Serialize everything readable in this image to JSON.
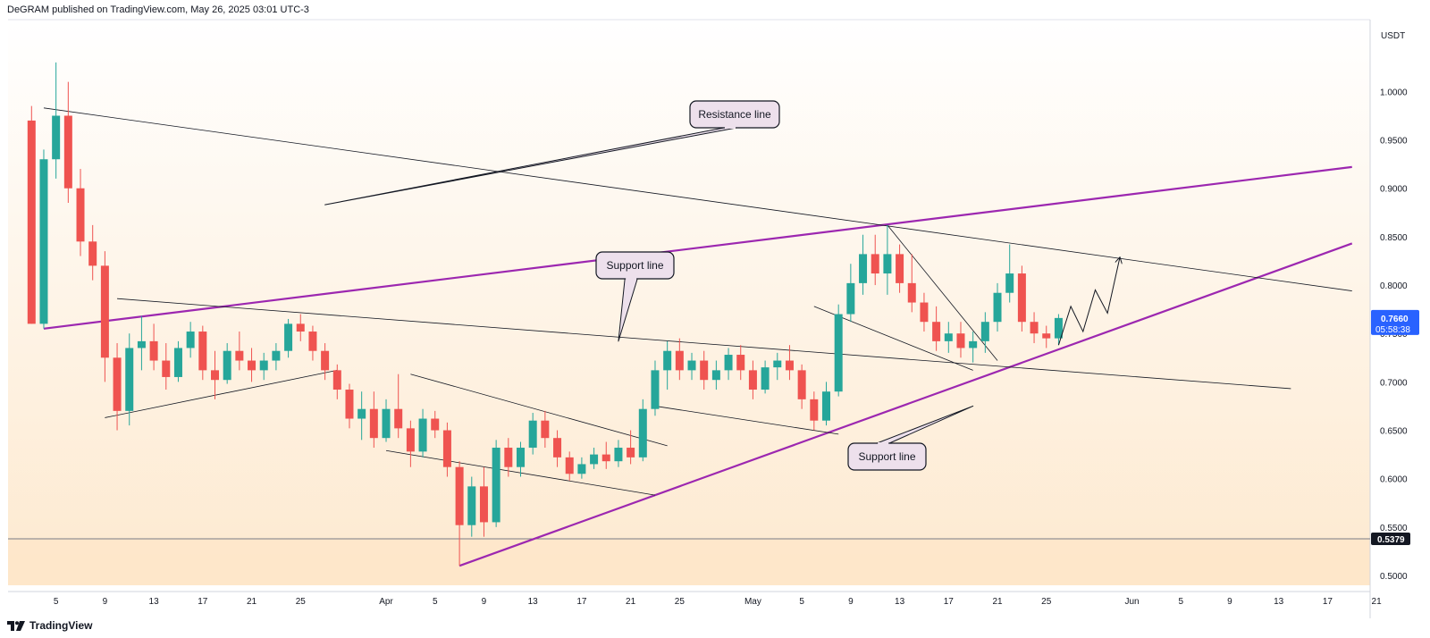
{
  "header": {
    "published": "DeGRAM published on TradingView.com, May 26, 2025 03:01 UTC-3"
  },
  "footer": {
    "brand": "TradingView"
  },
  "colors": {
    "bull": "#26a69a",
    "bear": "#ef5350",
    "pattern": "#9c27b0",
    "trend": "#131722",
    "tag_blue": "#2962ff",
    "tag_black": "#131722"
  },
  "chart_data": {
    "type": "candlestick",
    "currency": "USDT",
    "y_ticks": [
      "1.0000",
      "0.9500",
      "0.9000",
      "0.8500",
      "0.8000",
      "0.7500",
      "0.7000",
      "0.6500",
      "0.6000",
      "0.5500",
      "0.5000"
    ],
    "ylim": [
      0.464,
      1.065
    ],
    "x_ticks": [
      "5",
      "9",
      "13",
      "17",
      "21",
      "25",
      "Apr",
      "5",
      "9",
      "13",
      "17",
      "21",
      "25",
      "May",
      "5",
      "9",
      "13",
      "17",
      "21",
      "25",
      "Jun",
      "5",
      "9",
      "13",
      "17",
      "21"
    ],
    "price_tag": {
      "value": "0.7660",
      "countdown": "05:58:38"
    },
    "level_tag": {
      "value": "0.5379"
    },
    "horizontal_level": 0.5379,
    "callouts": [
      {
        "label": "Resistance line",
        "at": [
          "Mar 27",
          0.883
        ]
      },
      {
        "label": "Support line",
        "at": [
          "Apr 20",
          0.742
        ]
      },
      {
        "label": "Support line",
        "at": [
          "May 19",
          0.675
        ]
      }
    ],
    "lines": [
      {
        "name": "Rising trend (upper)",
        "style": "pattern",
        "from": [
          "Mar 4",
          0.755
        ],
        "to": [
          "Jun 19",
          0.922
        ]
      },
      {
        "name": "Rising trend (lower)",
        "style": "pattern",
        "from": [
          "Apr 7",
          0.51
        ],
        "to": [
          "Jun 19",
          0.843
        ]
      },
      {
        "name": "Descending line",
        "style": "thin",
        "from": [
          "Mar 4",
          0.983
        ],
        "to": [
          "Jun 19",
          0.794
        ]
      },
      {
        "name": "Long horizontal-ish line",
        "style": "thin",
        "from": [
          "Mar 10",
          0.786
        ],
        "to": [
          "Jun 14",
          0.693
        ]
      },
      {
        "name": "Wedge top",
        "style": "thin",
        "from": [
          "Apr 3",
          0.708
        ],
        "to": [
          "Apr 24",
          0.634
        ]
      },
      {
        "name": "Wedge bottom",
        "style": "thin",
        "from": [
          "Apr 1",
          0.629
        ],
        "to": [
          "Apr 23",
          0.583
        ]
      },
      {
        "name": "Flag top",
        "style": "thin",
        "from": [
          "May 12",
          0.862
        ],
        "to": [
          "May 21",
          0.722
        ]
      },
      {
        "name": "Flag bottom",
        "style": "thin",
        "from": [
          "May 6",
          0.778
        ],
        "to": [
          "May 19",
          0.712
        ]
      },
      {
        "name": "Channel lower",
        "style": "thin",
        "from": [
          "Apr 23",
          0.675
        ],
        "to": [
          "May 8",
          0.646
        ]
      },
      {
        "name": "Early channel",
        "style": "thin",
        "from": [
          "Mar 9",
          0.663
        ],
        "to": [
          "Mar 28",
          0.712
        ]
      }
    ],
    "projection": [
      [
        "May 26",
        0.738
      ],
      [
        "May 27",
        0.778
      ],
      [
        "May 28",
        0.752
      ],
      [
        "May 29",
        0.795
      ],
      [
        "May 30",
        0.771
      ],
      [
        "May 31",
        0.828
      ]
    ],
    "candles": [
      {
        "t": "Mar 3",
        "o": 0.97,
        "h": 0.985,
        "l": 0.76,
        "c": 0.76
      },
      {
        "t": "Mar 4",
        "o": 0.76,
        "h": 0.94,
        "l": 0.755,
        "c": 0.93
      },
      {
        "t": "Mar 5",
        "o": 0.93,
        "h": 1.03,
        "l": 0.91,
        "c": 0.975
      },
      {
        "t": "Mar 6",
        "o": 0.975,
        "h": 1.01,
        "l": 0.885,
        "c": 0.9
      },
      {
        "t": "Mar 7",
        "o": 0.9,
        "h": 0.92,
        "l": 0.83,
        "c": 0.845
      },
      {
        "t": "Mar 8",
        "o": 0.845,
        "h": 0.862,
        "l": 0.805,
        "c": 0.82
      },
      {
        "t": "Mar 9",
        "o": 0.82,
        "h": 0.835,
        "l": 0.7,
        "c": 0.725
      },
      {
        "t": "Mar 10",
        "o": 0.725,
        "h": 0.74,
        "l": 0.65,
        "c": 0.67
      },
      {
        "t": "Mar 11",
        "o": 0.67,
        "h": 0.75,
        "l": 0.655,
        "c": 0.735
      },
      {
        "t": "Mar 12",
        "o": 0.735,
        "h": 0.768,
        "l": 0.712,
        "c": 0.742
      },
      {
        "t": "Mar 13",
        "o": 0.742,
        "h": 0.76,
        "l": 0.712,
        "c": 0.722
      },
      {
        "t": "Mar 14",
        "o": 0.722,
        "h": 0.74,
        "l": 0.692,
        "c": 0.705
      },
      {
        "t": "Mar 15",
        "o": 0.705,
        "h": 0.742,
        "l": 0.7,
        "c": 0.735
      },
      {
        "t": "Mar 16",
        "o": 0.735,
        "h": 0.762,
        "l": 0.725,
        "c": 0.752
      },
      {
        "t": "Mar 17",
        "o": 0.752,
        "h": 0.758,
        "l": 0.702,
        "c": 0.712
      },
      {
        "t": "Mar 18",
        "o": 0.712,
        "h": 0.732,
        "l": 0.682,
        "c": 0.702
      },
      {
        "t": "Mar 19",
        "o": 0.702,
        "h": 0.74,
        "l": 0.698,
        "c": 0.732
      },
      {
        "t": "Mar 20",
        "o": 0.732,
        "h": 0.752,
        "l": 0.712,
        "c": 0.722
      },
      {
        "t": "Mar 21",
        "o": 0.722,
        "h": 0.735,
        "l": 0.7,
        "c": 0.712
      },
      {
        "t": "Mar 22",
        "o": 0.712,
        "h": 0.73,
        "l": 0.702,
        "c": 0.722
      },
      {
        "t": "Mar 23",
        "o": 0.722,
        "h": 0.74,
        "l": 0.712,
        "c": 0.732
      },
      {
        "t": "Mar 24",
        "o": 0.732,
        "h": 0.765,
        "l": 0.725,
        "c": 0.76
      },
      {
        "t": "Mar 25",
        "o": 0.76,
        "h": 0.77,
        "l": 0.742,
        "c": 0.752
      },
      {
        "t": "Mar 26",
        "o": 0.752,
        "h": 0.758,
        "l": 0.722,
        "c": 0.732
      },
      {
        "t": "Mar 27",
        "o": 0.732,
        "h": 0.74,
        "l": 0.702,
        "c": 0.712
      },
      {
        "t": "Mar 28",
        "o": 0.712,
        "h": 0.718,
        "l": 0.682,
        "c": 0.692
      },
      {
        "t": "Mar 29",
        "o": 0.692,
        "h": 0.698,
        "l": 0.652,
        "c": 0.662
      },
      {
        "t": "Mar 30",
        "o": 0.662,
        "h": 0.69,
        "l": 0.64,
        "c": 0.672
      },
      {
        "t": "Mar 31",
        "o": 0.672,
        "h": 0.69,
        "l": 0.632,
        "c": 0.642
      },
      {
        "t": "Apr 1",
        "o": 0.642,
        "h": 0.682,
        "l": 0.638,
        "c": 0.672
      },
      {
        "t": "Apr 2",
        "o": 0.672,
        "h": 0.708,
        "l": 0.642,
        "c": 0.652
      },
      {
        "t": "Apr 3",
        "o": 0.652,
        "h": 0.66,
        "l": 0.612,
        "c": 0.628
      },
      {
        "t": "Apr 4",
        "o": 0.628,
        "h": 0.672,
        "l": 0.622,
        "c": 0.662
      },
      {
        "t": "Apr 5",
        "o": 0.662,
        "h": 0.67,
        "l": 0.642,
        "c": 0.65
      },
      {
        "t": "Apr 6",
        "o": 0.65,
        "h": 0.658,
        "l": 0.602,
        "c": 0.612
      },
      {
        "t": "Apr 7",
        "o": 0.612,
        "h": 0.618,
        "l": 0.51,
        "c": 0.552
      },
      {
        "t": "Apr 8",
        "o": 0.552,
        "h": 0.602,
        "l": 0.54,
        "c": 0.592
      },
      {
        "t": "Apr 9",
        "o": 0.592,
        "h": 0.612,
        "l": 0.54,
        "c": 0.555
      },
      {
        "t": "Apr 10",
        "o": 0.555,
        "h": 0.64,
        "l": 0.55,
        "c": 0.632
      },
      {
        "t": "Apr 11",
        "o": 0.632,
        "h": 0.642,
        "l": 0.602,
        "c": 0.612
      },
      {
        "t": "Apr 12",
        "o": 0.612,
        "h": 0.638,
        "l": 0.602,
        "c": 0.632
      },
      {
        "t": "Apr 13",
        "o": 0.632,
        "h": 0.668,
        "l": 0.625,
        "c": 0.66
      },
      {
        "t": "Apr 14",
        "o": 0.66,
        "h": 0.67,
        "l": 0.632,
        "c": 0.642
      },
      {
        "t": "Apr 15",
        "o": 0.642,
        "h": 0.65,
        "l": 0.612,
        "c": 0.622
      },
      {
        "t": "Apr 16",
        "o": 0.622,
        "h": 0.628,
        "l": 0.598,
        "c": 0.605
      },
      {
        "t": "Apr 17",
        "o": 0.605,
        "h": 0.622,
        "l": 0.6,
        "c": 0.615
      },
      {
        "t": "Apr 18",
        "o": 0.615,
        "h": 0.632,
        "l": 0.61,
        "c": 0.625
      },
      {
        "t": "Apr 19",
        "o": 0.625,
        "h": 0.638,
        "l": 0.61,
        "c": 0.618
      },
      {
        "t": "Apr 20",
        "o": 0.618,
        "h": 0.64,
        "l": 0.612,
        "c": 0.632
      },
      {
        "t": "Apr 21",
        "o": 0.632,
        "h": 0.65,
        "l": 0.615,
        "c": 0.622
      },
      {
        "t": "Apr 22",
        "o": 0.622,
        "h": 0.682,
        "l": 0.618,
        "c": 0.672
      },
      {
        "t": "Apr 23",
        "o": 0.672,
        "h": 0.722,
        "l": 0.665,
        "c": 0.712
      },
      {
        "t": "Apr 24",
        "o": 0.712,
        "h": 0.742,
        "l": 0.692,
        "c": 0.732
      },
      {
        "t": "Apr 25",
        "o": 0.732,
        "h": 0.745,
        "l": 0.702,
        "c": 0.712
      },
      {
        "t": "Apr 26",
        "o": 0.712,
        "h": 0.73,
        "l": 0.702,
        "c": 0.722
      },
      {
        "t": "Apr 27",
        "o": 0.722,
        "h": 0.732,
        "l": 0.692,
        "c": 0.702
      },
      {
        "t": "Apr 28",
        "o": 0.702,
        "h": 0.722,
        "l": 0.692,
        "c": 0.712
      },
      {
        "t": "Apr 29",
        "o": 0.712,
        "h": 0.735,
        "l": 0.702,
        "c": 0.728
      },
      {
        "t": "Apr 30",
        "o": 0.728,
        "h": 0.738,
        "l": 0.702,
        "c": 0.712
      },
      {
        "t": "May 1",
        "o": 0.712,
        "h": 0.722,
        "l": 0.682,
        "c": 0.692
      },
      {
        "t": "May 2",
        "o": 0.692,
        "h": 0.722,
        "l": 0.688,
        "c": 0.715
      },
      {
        "t": "May 3",
        "o": 0.715,
        "h": 0.73,
        "l": 0.702,
        "c": 0.722
      },
      {
        "t": "May 4",
        "o": 0.722,
        "h": 0.738,
        "l": 0.702,
        "c": 0.712
      },
      {
        "t": "May 5",
        "o": 0.712,
        "h": 0.718,
        "l": 0.672,
        "c": 0.682
      },
      {
        "t": "May 6",
        "o": 0.682,
        "h": 0.69,
        "l": 0.65,
        "c": 0.66
      },
      {
        "t": "May 7",
        "o": 0.66,
        "h": 0.7,
        "l": 0.655,
        "c": 0.69
      },
      {
        "t": "May 8",
        "o": 0.69,
        "h": 0.78,
        "l": 0.685,
        "c": 0.77
      },
      {
        "t": "May 9",
        "o": 0.77,
        "h": 0.822,
        "l": 0.762,
        "c": 0.802
      },
      {
        "t": "May 10",
        "o": 0.802,
        "h": 0.852,
        "l": 0.79,
        "c": 0.832
      },
      {
        "t": "May 11",
        "o": 0.832,
        "h": 0.852,
        "l": 0.8,
        "c": 0.812
      },
      {
        "t": "May 12",
        "o": 0.812,
        "h": 0.862,
        "l": 0.79,
        "c": 0.832
      },
      {
        "t": "May 13",
        "o": 0.832,
        "h": 0.842,
        "l": 0.792,
        "c": 0.802
      },
      {
        "t": "May 14",
        "o": 0.802,
        "h": 0.832,
        "l": 0.772,
        "c": 0.782
      },
      {
        "t": "May 15",
        "o": 0.782,
        "h": 0.792,
        "l": 0.752,
        "c": 0.762
      },
      {
        "t": "May 16",
        "o": 0.762,
        "h": 0.778,
        "l": 0.732,
        "c": 0.742
      },
      {
        "t": "May 17",
        "o": 0.742,
        "h": 0.762,
        "l": 0.73,
        "c": 0.75
      },
      {
        "t": "May 18",
        "o": 0.75,
        "h": 0.762,
        "l": 0.725,
        "c": 0.735
      },
      {
        "t": "May 19",
        "o": 0.735,
        "h": 0.752,
        "l": 0.72,
        "c": 0.742
      },
      {
        "t": "May 20",
        "o": 0.742,
        "h": 0.772,
        "l": 0.73,
        "c": 0.762
      },
      {
        "t": "May 21",
        "o": 0.762,
        "h": 0.802,
        "l": 0.752,
        "c": 0.792
      },
      {
        "t": "May 22",
        "o": 0.792,
        "h": 0.842,
        "l": 0.782,
        "c": 0.812
      },
      {
        "t": "May 23",
        "o": 0.812,
        "h": 0.82,
        "l": 0.752,
        "c": 0.762
      },
      {
        "t": "May 24",
        "o": 0.762,
        "h": 0.772,
        "l": 0.74,
        "c": 0.75
      },
      {
        "t": "May 25",
        "o": 0.75,
        "h": 0.758,
        "l": 0.735,
        "c": 0.745
      },
      {
        "t": "May 26",
        "o": 0.745,
        "h": 0.77,
        "l": 0.738,
        "c": 0.766
      }
    ]
  }
}
